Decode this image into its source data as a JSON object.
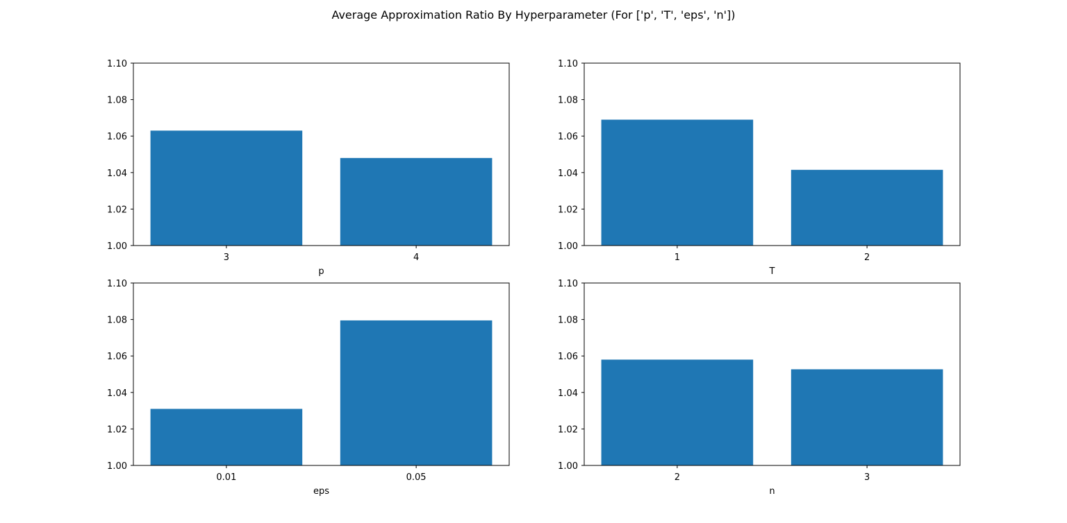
{
  "figure": {
    "title": "Average Approximation Ratio By Hyperparameter (For ['p', 'T', 'eps', 'n'])"
  },
  "colors": {
    "bar": "#1f77b4",
    "axis": "#000000",
    "background": "#ffffff"
  },
  "chart_data": [
    {
      "type": "bar",
      "categories": [
        "3",
        "4"
      ],
      "values": [
        1.063,
        1.048
      ],
      "xlabel": "p",
      "ylabel": "",
      "ylim": [
        1.0,
        1.1
      ],
      "yticks": [
        "1.00",
        "1.02",
        "1.04",
        "1.06",
        "1.08",
        "1.10"
      ],
      "grid": false
    },
    {
      "type": "bar",
      "categories": [
        "1",
        "2"
      ],
      "values": [
        1.069,
        1.0415
      ],
      "xlabel": "T",
      "ylabel": "",
      "ylim": [
        1.0,
        1.1
      ],
      "yticks": [
        "1.00",
        "1.02",
        "1.04",
        "1.06",
        "1.08",
        "1.10"
      ],
      "grid": false
    },
    {
      "type": "bar",
      "categories": [
        "0.01",
        "0.05"
      ],
      "values": [
        1.031,
        1.0795
      ],
      "xlabel": "eps",
      "ylabel": "",
      "ylim": [
        1.0,
        1.1
      ],
      "yticks": [
        "1.00",
        "1.02",
        "1.04",
        "1.06",
        "1.08",
        "1.10"
      ],
      "grid": false
    },
    {
      "type": "bar",
      "categories": [
        "2",
        "3"
      ],
      "values": [
        1.058,
        1.0527
      ],
      "xlabel": "n",
      "ylabel": "",
      "ylim": [
        1.0,
        1.1
      ],
      "yticks": [
        "1.00",
        "1.02",
        "1.04",
        "1.06",
        "1.08",
        "1.10"
      ],
      "grid": false
    }
  ]
}
